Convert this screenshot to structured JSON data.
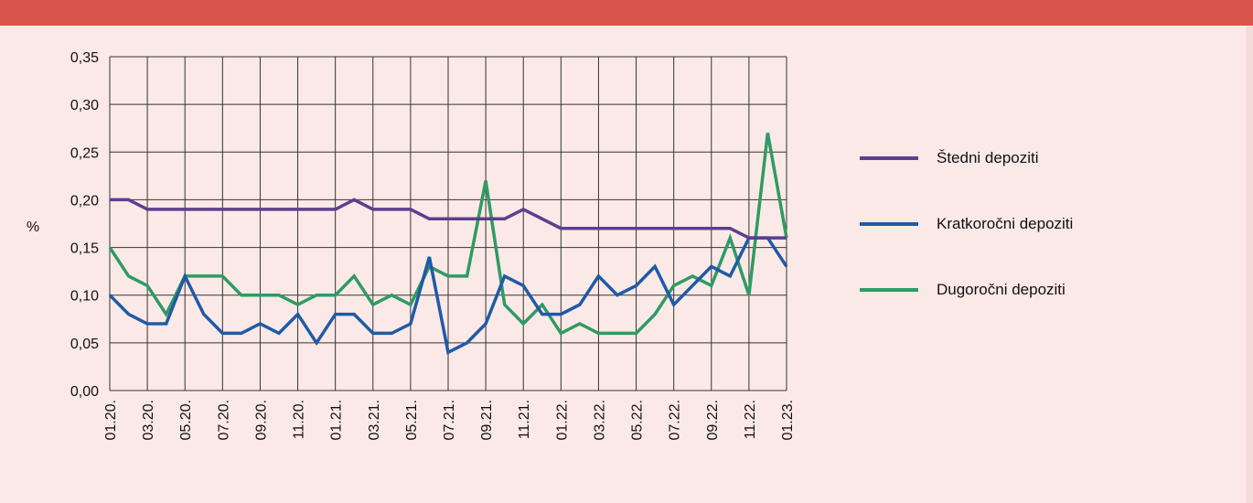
{
  "chart_data": {
    "type": "line",
    "ylabel": "%",
    "ylim": [
      0,
      0.35
    ],
    "y_ticks": [
      "0,00",
      "0,05",
      "0,10",
      "0,15",
      "0,20",
      "0,25",
      "0,30",
      "0,35"
    ],
    "x_ticks": [
      "01.20.",
      "03.20.",
      "05.20.",
      "07.20.",
      "09.20.",
      "11.20.",
      "01.21.",
      "03.21.",
      "05.21.",
      "07.21.",
      "09.21.",
      "11.21.",
      "01.22.",
      "03.22.",
      "05.22.",
      "07.22.",
      "09.22.",
      "11.22.",
      "01.23."
    ],
    "x": [
      "01.20.",
      "02.20.",
      "03.20.",
      "04.20.",
      "05.20.",
      "06.20.",
      "07.20.",
      "08.20.",
      "09.20.",
      "10.20.",
      "11.20.",
      "12.20.",
      "01.21.",
      "02.21.",
      "03.21.",
      "04.21.",
      "05.21.",
      "06.21.",
      "07.21.",
      "08.21.",
      "09.21.",
      "10.21.",
      "11.21.",
      "12.21.",
      "01.22.",
      "02.22.",
      "03.22.",
      "04.22.",
      "05.22.",
      "06.22.",
      "07.22.",
      "08.22.",
      "09.22.",
      "10.22.",
      "11.22.",
      "12.22.",
      "01.23."
    ],
    "grid": true,
    "legend_position": "right",
    "series": [
      {
        "name": "Štedni depoziti",
        "color": "#5b3f8f",
        "values": [
          0.2,
          0.2,
          0.19,
          0.19,
          0.19,
          0.19,
          0.19,
          0.19,
          0.19,
          0.19,
          0.19,
          0.19,
          0.19,
          0.2,
          0.19,
          0.19,
          0.19,
          0.18,
          0.18,
          0.18,
          0.18,
          0.18,
          0.19,
          0.18,
          0.17,
          0.17,
          0.17,
          0.17,
          0.17,
          0.17,
          0.17,
          0.17,
          0.17,
          0.17,
          0.16,
          0.16,
          0.16
        ]
      },
      {
        "name": "Kratkoročni depoziti",
        "color": "#1f5aa6",
        "values": [
          0.1,
          0.08,
          0.07,
          0.07,
          0.12,
          0.08,
          0.06,
          0.06,
          0.07,
          0.06,
          0.08,
          0.05,
          0.08,
          0.08,
          0.06,
          0.06,
          0.07,
          0.14,
          0.04,
          0.05,
          0.07,
          0.12,
          0.11,
          0.08,
          0.08,
          0.09,
          0.12,
          0.1,
          0.11,
          0.13,
          0.09,
          0.11,
          0.13,
          0.12,
          0.16,
          0.16,
          0.13
        ]
      },
      {
        "name": "Dugoročni depoziti",
        "color": "#2e9b63",
        "values": [
          0.15,
          0.12,
          0.11,
          0.08,
          0.12,
          0.12,
          0.12,
          0.1,
          0.1,
          0.1,
          0.09,
          0.1,
          0.1,
          0.12,
          0.09,
          0.1,
          0.09,
          0.13,
          0.12,
          0.12,
          0.22,
          0.09,
          0.07,
          0.09,
          0.06,
          0.07,
          0.06,
          0.06,
          0.06,
          0.08,
          0.11,
          0.12,
          0.11,
          0.16,
          0.1,
          0.27,
          0.16
        ]
      }
    ]
  }
}
